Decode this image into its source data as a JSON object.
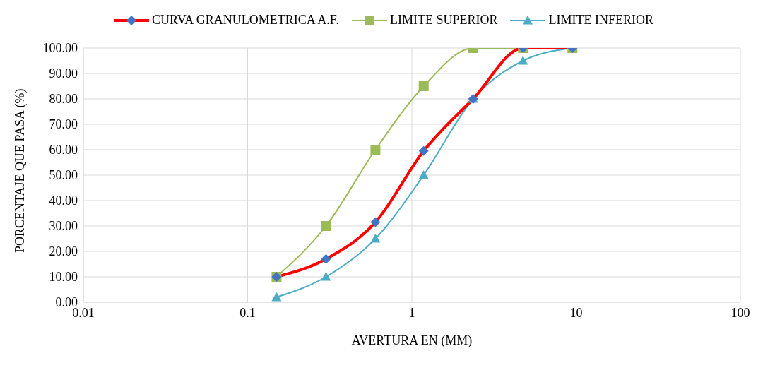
{
  "chart_data": {
    "type": "line",
    "xlabel": "AVERTURA EN (MM)",
    "ylabel": "PORCENTAJE QUE PASA (%)",
    "log": "x",
    "xlim": [
      0.01,
      100
    ],
    "xticks": [
      0.01,
      0.1,
      1,
      10,
      100
    ],
    "ylim": [
      0,
      100
    ],
    "yticks": [
      {
        "value": 0,
        "label": "0.00"
      },
      {
        "value": 10,
        "label": "10.00"
      },
      {
        "value": 20,
        "label": "20.00"
      },
      {
        "value": 30,
        "label": "30.00"
      },
      {
        "value": 40,
        "label": "40.00"
      },
      {
        "value": 50,
        "label": "50.00"
      },
      {
        "value": 60,
        "label": "60.00"
      },
      {
        "value": 70,
        "label": "70.00"
      },
      {
        "value": 80,
        "label": "80.00"
      },
      {
        "value": 90,
        "label": "90.00"
      },
      {
        "value": 100,
        "label": "100.00"
      }
    ],
    "grid": true,
    "legend": "top",
    "x": [
      0.15,
      0.3,
      0.6,
      1.18,
      2.36,
      4.75,
      9.5
    ],
    "series": [
      {
        "name": "CURVA GRANULOMETRICA A.F.",
        "color": "#ff0000",
        "marker": "diamond",
        "values": [
          10,
          17,
          31.5,
          59.5,
          80,
          100,
          100
        ]
      },
      {
        "name": "LIMITE SUPERIOR",
        "color": "#9bbb59",
        "marker": "square",
        "values": [
          10,
          30,
          60,
          85,
          100,
          100,
          100
        ]
      },
      {
        "name": "LIMITE INFERIOR",
        "color": "#4bacc6",
        "marker": "triangle",
        "values": [
          2,
          10,
          25,
          50,
          80,
          95,
          100
        ]
      }
    ]
  }
}
